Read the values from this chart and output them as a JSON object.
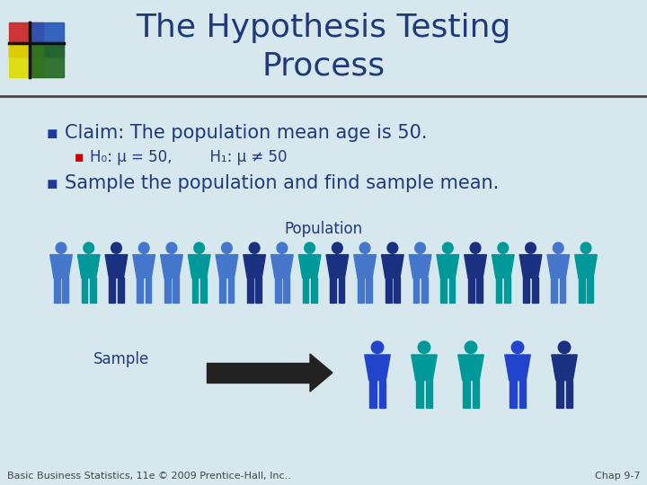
{
  "title": "The Hypothesis Testing\nProcess",
  "title_color": "#1F3A7A",
  "title_fontsize": 26,
  "bg_color": "#D6E8EE",
  "bullet1": "Claim: The population mean age is 50.",
  "bullet1_color": "#1F3A7A",
  "bullet1_fontsize": 15,
  "sub_bullet": "H₀: μ = 50,        H₁: μ ≠ 50",
  "sub_bullet_color": "#1F3A7A",
  "sub_bullet_fontsize": 12,
  "sub_bullet_marker_color": "#CC0000",
  "bullet2": "Sample the population and find sample mean.",
  "bullet2_color": "#1F3A7A",
  "bullet2_fontsize": 15,
  "population_label": "Population",
  "sample_label": "Sample",
  "footer_left": "Basic Business Statistics, 11e © 2009 Prentice-Hall, Inc..",
  "footer_right": "Chap 9-7",
  "footer_color": "#444444",
  "footer_fontsize": 8,
  "navy_color": "#1F3A9A",
  "pop_colors": [
    "#4477CC",
    "#009999",
    "#1A3080",
    "#4477CC",
    "#4477CC",
    "#009999",
    "#4477CC",
    "#1A3080",
    "#4477CC",
    "#009999",
    "#1A3080",
    "#4477CC",
    "#1A3080",
    "#4477CC",
    "#009999",
    "#1A3080",
    "#009999",
    "#1A3080",
    "#4477CC",
    "#009999"
  ],
  "sample_colors": [
    "#2244CC",
    "#009999",
    "#009999",
    "#2244CC",
    "#1A3080"
  ],
  "arrow_color": "#222222",
  "line_color": "#444444",
  "logo_colors": {
    "red": "#CC2222",
    "blue": "#2255BB",
    "green": "#226622",
    "yellow": "#DDDD00"
  }
}
